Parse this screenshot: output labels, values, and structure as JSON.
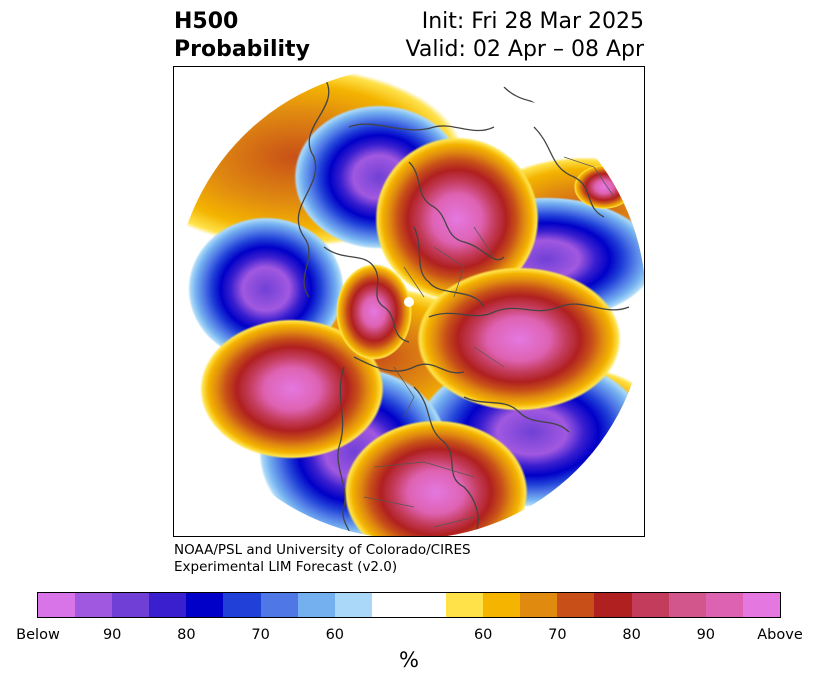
{
  "header": {
    "title_line1": "H500",
    "title_line2": "Probability",
    "init": "Init: Fri 28 Mar 2025",
    "valid": "Valid: 02 Apr – 08 Apr"
  },
  "credit": {
    "line1": "NOAA/PSL and University of Colorado/CIRES",
    "line2": "Experimental LIM Forecast (v2.0)"
  },
  "colorbar": {
    "colors": [
      "#d873e8",
      "#a158e0",
      "#7040d6",
      "#3a1fcf",
      "#0000c8",
      "#2040d8",
      "#4f78e6",
      "#74b0f0",
      "#aad8f8",
      "#ffffff",
      "#ffe24a",
      "#f4b400",
      "#e08a10",
      "#c85018",
      "#b02020",
      "#c43c5c",
      "#d2568c",
      "#de62b2",
      "#e478e0"
    ],
    "tick_labels": [
      "Below",
      "90",
      "80",
      "70",
      "60",
      "60",
      "70",
      "80",
      "90",
      "Above"
    ],
    "units": "%"
  },
  "map": {
    "projection": "north-polar-stereographic",
    "anomaly_centers": [
      {
        "region": "Alaska / Bering",
        "sign": "below"
      },
      {
        "region": "Greenland / North Atlantic",
        "sign": "above"
      },
      {
        "region": "Scandinavia / Northern Europe",
        "sign": "below"
      },
      {
        "region": "Siberia",
        "sign": "above"
      },
      {
        "region": "East Asia / North Pacific",
        "sign": "below"
      },
      {
        "region": "Western North America",
        "sign": "below"
      },
      {
        "region": "Eastern North America",
        "sign": "above"
      },
      {
        "region": "Eastern Mediterranean",
        "sign": "above"
      },
      {
        "region": "Central Pacific",
        "sign": "below"
      }
    ]
  }
}
